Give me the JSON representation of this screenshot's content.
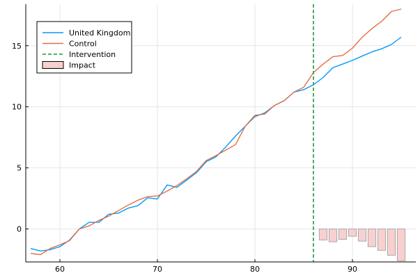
{
  "chart_data": {
    "type": "line",
    "title": "",
    "xlabel": "",
    "ylabel": "",
    "xlim": [
      56.5,
      96.5
    ],
    "ylim": [
      -2.7,
      18.4
    ],
    "grid": true,
    "legend_position": "top-left",
    "x_ticks": [
      {
        "value": 60,
        "label": "60"
      },
      {
        "value": 70,
        "label": "70"
      },
      {
        "value": 80,
        "label": "80"
      },
      {
        "value": 90,
        "label": "90"
      }
    ],
    "y_ticks": [
      {
        "value": 0,
        "label": "0"
      },
      {
        "value": 5,
        "label": "5"
      },
      {
        "value": 10,
        "label": "10"
      },
      {
        "value": 15,
        "label": "15"
      }
    ],
    "series": [
      {
        "name": "United Kingdom",
        "type": "line",
        "color": "#009af9",
        "x": [
          57,
          58,
          59,
          60,
          61,
          62,
          63,
          64,
          65,
          66,
          67,
          68,
          69,
          70,
          71,
          72,
          73,
          74,
          75,
          76,
          77,
          78,
          79,
          80,
          81,
          82,
          83,
          84,
          85,
          86,
          87,
          88,
          89,
          90,
          91,
          92,
          93,
          94,
          95
        ],
        "y": [
          -1.6,
          -1.8,
          -1.7,
          -1.45,
          -0.9,
          0.0,
          0.55,
          0.55,
          1.2,
          1.3,
          1.7,
          1.9,
          2.55,
          2.45,
          3.6,
          3.4,
          4.0,
          4.6,
          5.5,
          5.9,
          6.7,
          7.6,
          8.4,
          9.2,
          9.5,
          10.1,
          10.5,
          11.2,
          11.4,
          11.8,
          12.4,
          13.2,
          13.5,
          13.8,
          14.15,
          14.5,
          14.75,
          15.1,
          15.7
        ]
      },
      {
        "name": "Control",
        "type": "line",
        "color": "#e26f46",
        "x": [
          57,
          58,
          59,
          60,
          61,
          62,
          63,
          64,
          65,
          66,
          67,
          68,
          69,
          70,
          71,
          72,
          73,
          74,
          75,
          76,
          77,
          78,
          79,
          80,
          81,
          82,
          83,
          84,
          85,
          86,
          87,
          88,
          89,
          90,
          91,
          92,
          93,
          94,
          95
        ],
        "y": [
          -2.0,
          -2.1,
          -1.6,
          -1.3,
          -0.95,
          0.0,
          0.25,
          0.7,
          1.05,
          1.5,
          1.95,
          2.35,
          2.65,
          2.7,
          3.1,
          3.55,
          4.1,
          4.7,
          5.6,
          6.0,
          6.45,
          6.9,
          8.4,
          9.3,
          9.4,
          10.1,
          10.5,
          11.2,
          11.6,
          12.8,
          13.5,
          14.1,
          14.2,
          14.8,
          15.7,
          16.4,
          17.0,
          17.8,
          18.0
        ]
      },
      {
        "name": "Intervention",
        "type": "vline",
        "color": "#3da44d",
        "x": 86
      },
      {
        "name": "Impact",
        "type": "bar",
        "color": "#f8d0d0",
        "edge_color": "#a8a8a8",
        "x": [
          87,
          88,
          89,
          90,
          91,
          92,
          93,
          94,
          95
        ],
        "y": [
          -0.9,
          -1.05,
          -0.85,
          -0.6,
          -1.0,
          -1.45,
          -1.75,
          -2.15,
          -2.6
        ]
      }
    ]
  }
}
